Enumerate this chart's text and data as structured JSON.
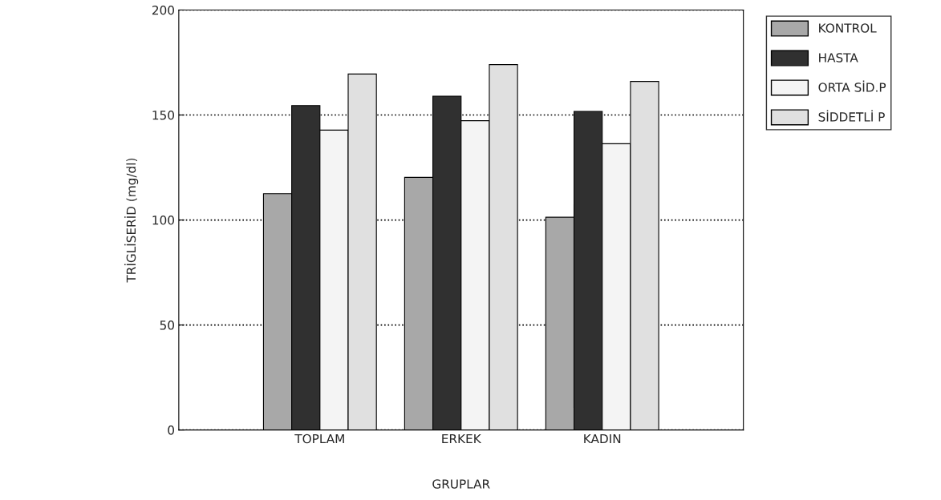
{
  "chart_data": {
    "type": "bar",
    "xlabel": "GRUPLAR",
    "ylabel": "TRİGLİSERİD (mg/dl)",
    "categories": [
      "TOPLAM",
      "ERKEK",
      "KADIN"
    ],
    "series": [
      {
        "name": "KONTROL",
        "color": "#a8a8a8",
        "values": [
          112.5,
          120.3,
          101.3
        ]
      },
      {
        "name": "HASTA",
        "color": "#303030",
        "values": [
          154.5,
          159,
          151.7
        ]
      },
      {
        "name": "ORTA SİD.P",
        "color": "#f4f4f4",
        "values": [
          142.8,
          147.3,
          136.3
        ]
      },
      {
        "name": "SİDDETLİ P",
        "color": "#e0e0e0",
        "values": [
          169.5,
          174,
          166
        ]
      }
    ],
    "ylim": [
      0,
      200
    ],
    "yticks": [
      0,
      50,
      100,
      150,
      200
    ],
    "grid": "y",
    "legend": "right"
  }
}
